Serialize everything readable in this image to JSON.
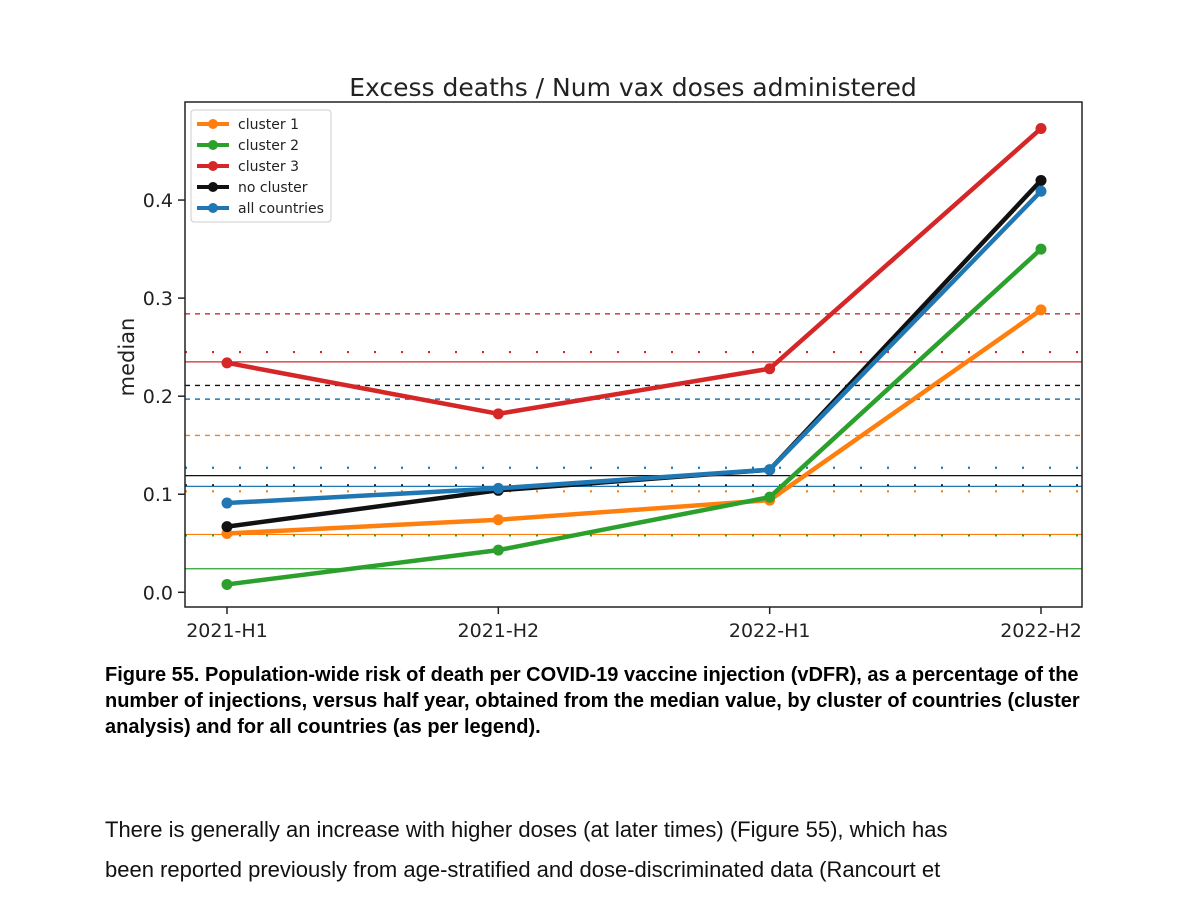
{
  "chart_data": {
    "type": "line",
    "title": "Excess deaths / Num vax doses administered",
    "xlabel": "",
    "ylabel": "median",
    "categories": [
      "2021-H1",
      "2021-H2",
      "2022-H1",
      "2022-H2"
    ],
    "ylim": [
      -0.015,
      0.5
    ],
    "yticks": [
      0.0,
      0.1,
      0.2,
      0.3,
      0.4
    ],
    "ytick_labels": [
      "0.0",
      "0.1",
      "0.2",
      "0.3",
      "0.4"
    ],
    "legend_position": "top-left",
    "series": [
      {
        "name": "cluster 1",
        "color": "#ff7f0e",
        "values": [
          0.06,
          0.074,
          0.094,
          0.288
        ]
      },
      {
        "name": "cluster 2",
        "color": "#2ca02c",
        "values": [
          0.008,
          0.043,
          0.097,
          0.35
        ]
      },
      {
        "name": "cluster 3",
        "color": "#d62728",
        "values": [
          0.234,
          0.182,
          0.228,
          0.473
        ]
      },
      {
        "name": "no cluster",
        "color": "#111111",
        "values": [
          0.067,
          0.104,
          0.125,
          0.42
        ]
      },
      {
        "name": "all countries",
        "color": "#1f77b4",
        "values": [
          0.091,
          0.106,
          0.125,
          0.409
        ]
      }
    ],
    "reference_lines": [
      {
        "series": "cluster 3",
        "style": "dashed",
        "value": 0.284
      },
      {
        "series": "cluster 3",
        "style": "dotted",
        "value": 0.245
      },
      {
        "series": "cluster 3",
        "style": "solid",
        "value": 0.235
      },
      {
        "series": "no cluster",
        "style": "dashed",
        "value": 0.211
      },
      {
        "series": "all countries",
        "style": "dashed",
        "value": 0.197
      },
      {
        "series": "cluster 1",
        "style": "dashed",
        "value": 0.16
      },
      {
        "series": "all countries",
        "style": "dotted",
        "value": 0.127
      },
      {
        "series": "no cluster",
        "style": "solid",
        "value": 0.119
      },
      {
        "series": "no cluster",
        "style": "dotted",
        "value": 0.109
      },
      {
        "series": "all countries",
        "style": "solid",
        "value": 0.108
      },
      {
        "series": "cluster 1",
        "style": "dotted",
        "value": 0.103
      },
      {
        "series": "cluster 1",
        "style": "solid",
        "value": 0.059
      },
      {
        "series": "cluster 2",
        "style": "dotted",
        "value": 0.058
      },
      {
        "series": "cluster 2",
        "style": "solid",
        "value": 0.024
      }
    ]
  },
  "caption": "Figure 55. Population-wide risk of death per COVID-19 vaccine injection (vDFR), as a percentage of the number of injections, versus half year, obtained from the median value, by cluster of countries (cluster analysis) and for all countries (as per legend).",
  "body_text": [
    "There is generally an increase with higher doses (at later times) (Figure 55), which has",
    "been reported previously from age-stratified and dose-discriminated data (Rancourt et"
  ]
}
